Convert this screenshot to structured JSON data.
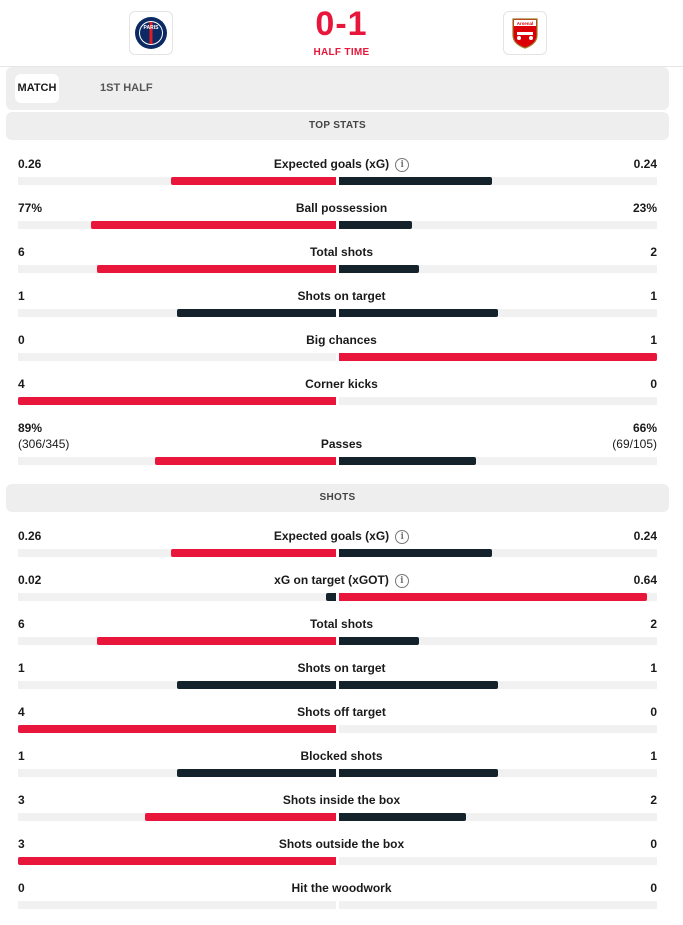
{
  "match": {
    "home_team": "Paris Saint-Germain",
    "away_team": "Arsenal",
    "score": "0-1",
    "status": "HALF TIME",
    "home_crest_text": "PARIS",
    "away_crest_text": "Arsenal"
  },
  "tabs": [
    {
      "label": "MATCH",
      "active": true
    },
    {
      "label": "1ST HALF",
      "active": false
    }
  ],
  "colors": {
    "accent": "#e8163b",
    "dark": "#14222b",
    "track": "#f1f1f1"
  },
  "sections": [
    {
      "title": "TOP STATS",
      "stats": [
        {
          "label": "Expected goals (xG)",
          "info": true,
          "home": "0.26",
          "away": "0.24",
          "home_share": 0.52,
          "away_share": 0.48,
          "leader": "home"
        },
        {
          "label": "Ball possession",
          "home": "77%",
          "away": "23%",
          "home_share": 0.77,
          "away_share": 0.23,
          "leader": "home"
        },
        {
          "label": "Total shots",
          "home": "6",
          "away": "2",
          "home_share": 0.75,
          "away_share": 0.25,
          "leader": "home"
        },
        {
          "label": "Shots on target",
          "home": "1",
          "away": "1",
          "home_share": 0.5,
          "away_share": 0.5,
          "leader": "none"
        },
        {
          "label": "Big chances",
          "home": "0",
          "away": "1",
          "home_share": 0,
          "away_share": 1,
          "leader": "away"
        },
        {
          "label": "Corner kicks",
          "home": "4",
          "away": "0",
          "home_share": 1,
          "away_share": 0,
          "leader": "home"
        },
        {
          "label": "Passes",
          "home": "89%",
          "home_sub": "(306/345)",
          "away": "66%",
          "away_sub": "(69/105)",
          "home_share": 0.57,
          "away_share": 0.43,
          "leader": "home"
        }
      ]
    },
    {
      "title": "SHOTS",
      "stats": [
        {
          "label": "Expected goals (xG)",
          "info": true,
          "home": "0.26",
          "away": "0.24",
          "home_share": 0.52,
          "away_share": 0.48,
          "leader": "home"
        },
        {
          "label": "xG on target (xGOT)",
          "info": true,
          "home": "0.02",
          "away": "0.64",
          "home_share": 0.03,
          "away_share": 0.97,
          "leader": "away"
        },
        {
          "label": "Total shots",
          "home": "6",
          "away": "2",
          "home_share": 0.75,
          "away_share": 0.25,
          "leader": "home"
        },
        {
          "label": "Shots on target",
          "home": "1",
          "away": "1",
          "home_share": 0.5,
          "away_share": 0.5,
          "leader": "none"
        },
        {
          "label": "Shots off target",
          "home": "4",
          "away": "0",
          "home_share": 1,
          "away_share": 0,
          "leader": "home"
        },
        {
          "label": "Blocked shots",
          "home": "1",
          "away": "1",
          "home_share": 0.5,
          "away_share": 0.5,
          "leader": "none"
        },
        {
          "label": "Shots inside the box",
          "home": "3",
          "away": "2",
          "home_share": 0.6,
          "away_share": 0.4,
          "leader": "home"
        },
        {
          "label": "Shots outside the box",
          "home": "3",
          "away": "0",
          "home_share": 1,
          "away_share": 0,
          "leader": "home"
        },
        {
          "label": "Hit the woodwork",
          "home": "0",
          "away": "0",
          "home_share": 0,
          "away_share": 0,
          "leader": "none"
        }
      ]
    }
  ]
}
